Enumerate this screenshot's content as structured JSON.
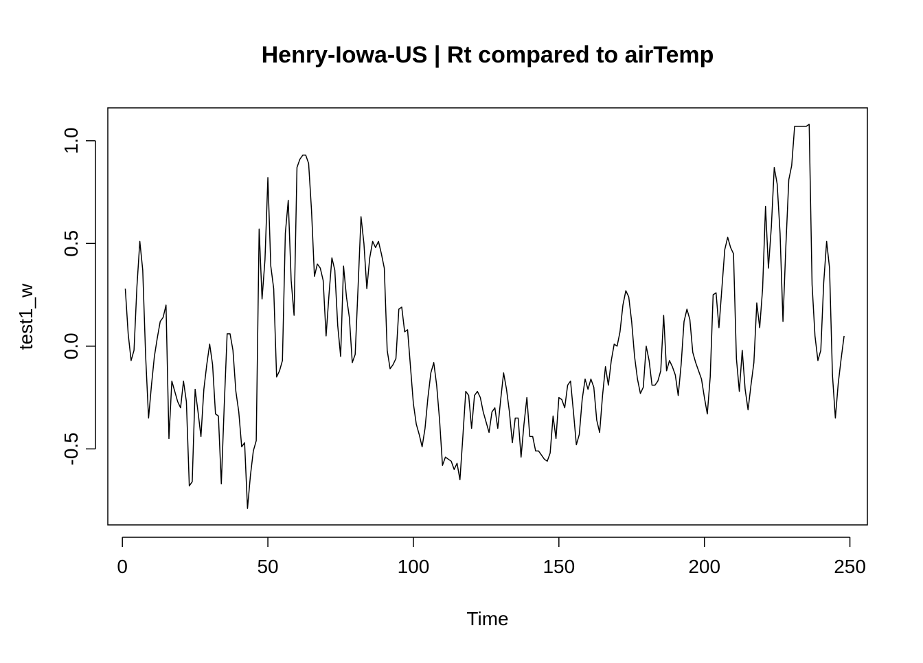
{
  "chart_data": {
    "type": "line",
    "title": "Henry-Iowa-US | Rt compared to airTemp",
    "xlabel": "Time",
    "ylabel": "test1_w",
    "xlim": [
      -5.0,
      256.0
    ],
    "ylim": [
      -0.87,
      1.16
    ],
    "x_ticks": [
      0,
      50,
      100,
      150,
      200,
      250
    ],
    "x_tick_labels": [
      "0",
      "50",
      "100",
      "150",
      "200",
      "250"
    ],
    "y_ticks": [
      -0.5,
      0.0,
      0.5,
      1.0
    ],
    "y_tick_labels": [
      "-0.5",
      "0.0",
      "0.5",
      "1.0"
    ],
    "grid": false,
    "legend": "none",
    "line_color": "#000000",
    "series": [
      {
        "x_start": 1,
        "x_step": 1,
        "values": [
          0.28,
          0.06,
          -0.07,
          -0.02,
          0.29,
          0.51,
          0.37,
          -0.05,
          -0.35,
          -0.19,
          -0.05,
          0.04,
          0.12,
          0.14,
          0.2,
          -0.45,
          -0.17,
          -0.22,
          -0.27,
          -0.3,
          -0.17,
          -0.27,
          -0.68,
          -0.66,
          -0.21,
          -0.32,
          -0.44,
          -0.21,
          -0.09,
          0.01,
          -0.09,
          -0.33,
          -0.34,
          -0.67,
          -0.29,
          0.06,
          0.06,
          -0.02,
          -0.22,
          -0.32,
          -0.49,
          -0.47,
          -0.79,
          -0.63,
          -0.51,
          -0.46,
          0.57,
          0.23,
          0.42,
          0.82,
          0.39,
          0.28,
          -0.15,
          -0.12,
          -0.07,
          0.55,
          0.71,
          0.32,
          0.15,
          0.87,
          0.91,
          0.93,
          0.93,
          0.89,
          0.66,
          0.34,
          0.4,
          0.38,
          0.32,
          0.05,
          0.25,
          0.43,
          0.37,
          0.1,
          -0.05,
          0.39,
          0.24,
          0.14,
          -0.08,
          -0.04,
          0.29,
          0.63,
          0.5,
          0.28,
          0.43,
          0.51,
          0.48,
          0.51,
          0.45,
          0.38,
          -0.02,
          -0.11,
          -0.09,
          -0.06,
          0.18,
          0.19,
          0.07,
          0.08,
          -0.1,
          -0.28,
          -0.38,
          -0.43,
          -0.49,
          -0.4,
          -0.25,
          -0.13,
          -0.08,
          -0.19,
          -0.36,
          -0.58,
          -0.54,
          -0.55,
          -0.56,
          -0.6,
          -0.57,
          -0.65,
          -0.44,
          -0.22,
          -0.24,
          -0.4,
          -0.24,
          -0.22,
          -0.25,
          -0.32,
          -0.37,
          -0.42,
          -0.32,
          -0.3,
          -0.4,
          -0.26,
          -0.13,
          -0.21,
          -0.32,
          -0.47,
          -0.35,
          -0.35,
          -0.54,
          -0.38,
          -0.25,
          -0.44,
          -0.44,
          -0.51,
          -0.51,
          -0.53,
          -0.55,
          -0.56,
          -0.52,
          -0.34,
          -0.45,
          -0.25,
          -0.26,
          -0.3,
          -0.19,
          -0.17,
          -0.32,
          -0.48,
          -0.43,
          -0.26,
          -0.16,
          -0.21,
          -0.16,
          -0.2,
          -0.36,
          -0.42,
          -0.24,
          -0.1,
          -0.19,
          -0.07,
          0.01,
          0.0,
          0.07,
          0.2,
          0.27,
          0.24,
          0.12,
          -0.05,
          -0.16,
          -0.23,
          -0.2,
          0.0,
          -0.07,
          -0.19,
          -0.19,
          -0.17,
          -0.12,
          0.15,
          -0.12,
          -0.07,
          -0.1,
          -0.14,
          -0.24,
          -0.09,
          0.12,
          0.18,
          0.13,
          -0.03,
          -0.08,
          -0.12,
          -0.16,
          -0.25,
          -0.33,
          -0.15,
          0.25,
          0.26,
          0.09,
          0.28,
          0.47,
          0.53,
          0.48,
          0.45,
          -0.06,
          -0.22,
          -0.02,
          -0.21,
          -0.31,
          -0.19,
          -0.08,
          0.21,
          0.09,
          0.28,
          0.68,
          0.38,
          0.58,
          0.87,
          0.79,
          0.55,
          0.12,
          0.49,
          0.81,
          0.88,
          1.07,
          1.07,
          1.07,
          1.07,
          1.07,
          1.08,
          0.3,
          0.05,
          -0.07,
          -0.02,
          0.31,
          0.51,
          0.38,
          -0.14,
          -0.35,
          -0.18,
          -0.06,
          0.05
        ]
      }
    ]
  }
}
